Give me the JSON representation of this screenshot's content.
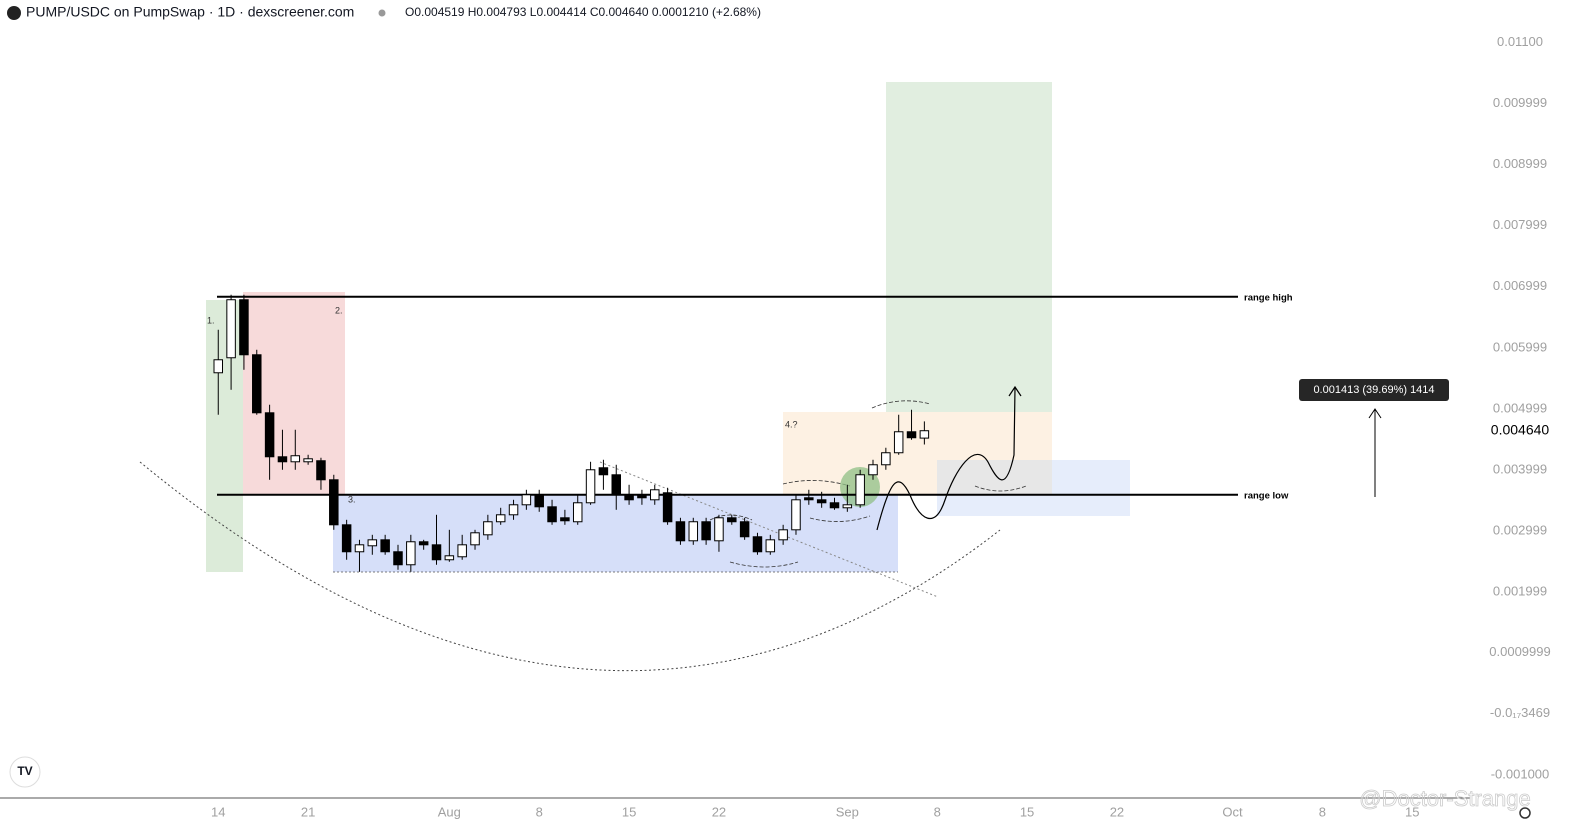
{
  "chart_data": {
    "type": "candlestick",
    "title": "PUMP/USDC on PumpSwap · 1D · dexscreener.com",
    "subtitle": "O0.004519 H0.004793 L0.004414 C0.004640 0.0001210 (+2.68%)",
    "watermark": "@Doctor-Strange",
    "up_color": "#ffffff",
    "down_color": "#000000",
    "ylim": [
      -0.00138,
      0.0117
    ],
    "yticks": [
      {
        "value": 0.011,
        "label": "0.01100"
      },
      0.009999,
      0.008999,
      0.007999,
      0.006999,
      0.005999,
      0.004999,
      0.003999,
      0.002999,
      0.001999,
      0.0009999,
      {
        "value": -3.469e-18,
        "label": "-0.0₁₇3469"
      },
      {
        "value": -0.001,
        "label": "-0.001000"
      }
    ],
    "xlim": [
      -17,
      97.5
    ],
    "xticks": [
      {
        "value": 0,
        "label": "14"
      },
      {
        "value": 7,
        "label": "21"
      },
      {
        "value": 18,
        "label": "Aug"
      },
      {
        "value": 25,
        "label": "8"
      },
      {
        "value": 32,
        "label": "15"
      },
      {
        "value": 39,
        "label": "22"
      },
      {
        "value": 49,
        "label": "Sep"
      },
      {
        "value": 56,
        "label": "8"
      },
      {
        "value": 63,
        "label": "15"
      },
      {
        "value": 70,
        "label": "22"
      },
      {
        "value": 79,
        "label": "Oct"
      },
      {
        "value": 86,
        "label": "8"
      },
      {
        "value": 93,
        "label": "15"
      }
    ],
    "x": [
      0,
      1,
      2,
      3,
      4,
      5,
      6,
      7,
      8,
      9,
      10,
      11,
      12,
      13,
      14,
      15,
      16,
      17,
      18,
      19,
      20,
      21,
      22,
      23,
      24,
      25,
      26,
      27,
      28,
      29,
      30,
      31,
      32,
      33,
      34,
      35,
      36,
      37,
      38,
      39,
      40,
      41,
      42,
      43,
      44,
      45,
      46,
      47,
      48,
      49,
      50,
      51,
      52,
      53,
      54,
      55
    ],
    "open": [
      0.00559,
      0.005836,
      0.006787,
      0.005885,
      0.004934,
      0.004213,
      0.004131,
      0.004131,
      0.004148,
      0.003836,
      0.003098,
      0.002656,
      0.002754,
      0.002852,
      0.002656,
      0.002443,
      0.00282,
      0.00277,
      0.002525,
      0.002574,
      0.00277,
      0.002934,
      0.003148,
      0.003262,
      0.003426,
      0.00359,
      0.003393,
      0.003213,
      0.003148,
      0.003459,
      0.004033,
      0.003918,
      0.00359,
      0.00359,
      0.003508,
      0.003623,
      0.003148,
      0.002836,
      0.003148,
      0.002836,
      0.003213,
      0.003148,
      0.002902,
      0.002656,
      0.002852,
      0.003016,
      0.003541,
      0.003508,
      0.003459,
      0.003377,
      0.003426,
      0.003918,
      0.004082,
      0.004279,
      0.004623,
      0.004519
    ],
    "high": [
      0.006295,
      0.006869,
      0.006869,
      0.005967,
      0.005066,
      0.004656,
      0.004656,
      0.004246,
      0.004197,
      0.003918,
      0.00318,
      0.002852,
      0.002934,
      0.002934,
      0.00277,
      0.002934,
      0.002852,
      0.003262,
      0.003016,
      0.002934,
      0.003016,
      0.003262,
      0.003377,
      0.003508,
      0.003672,
      0.003672,
      0.003508,
      0.003344,
      0.00359,
      0.004131,
      0.004164,
      0.004082,
      0.003754,
      0.003672,
      0.003754,
      0.003705,
      0.003213,
      0.003213,
      0.003213,
      0.003262,
      0.003262,
      0.003213,
      0.002967,
      0.002934,
      0.003098,
      0.00359,
      0.003672,
      0.003639,
      0.003541,
      0.003754,
      0.004,
      0.004164,
      0.004361,
      0.004902,
      0.004984,
      0.004793
    ],
    "low": [
      0.004902,
      0.005311,
      0.005639,
      0.004902,
      0.003836,
      0.004,
      0.004,
      0.004082,
      0.003672,
      0.003016,
      0.002525,
      0.002328,
      0.002607,
      0.002607,
      0.002361,
      0.002328,
      0.002689,
      0.002443,
      0.002492,
      0.002525,
      0.002689,
      0.002852,
      0.003098,
      0.00318,
      0.003344,
      0.003311,
      0.003098,
      0.003098,
      0.003098,
      0.003426,
      0.003672,
      0.003344,
      0.003426,
      0.003426,
      0.003426,
      0.003098,
      0.00277,
      0.00277,
      0.00277,
      0.002656,
      0.003098,
      0.002852,
      0.002607,
      0.002607,
      0.00277,
      0.002934,
      0.003426,
      0.003377,
      0.003344,
      0.003311,
      0.003377,
      0.003836,
      0.004,
      0.004246,
      0.004492,
      0.004414
    ],
    "close": [
      0.005803,
      0.006787,
      0.005885,
      0.004934,
      0.004213,
      0.004131,
      0.00423,
      0.00418,
      0.003836,
      0.003098,
      0.002656,
      0.00277,
      0.002852,
      0.002656,
      0.002443,
      0.00282,
      0.00277,
      0.002525,
      0.00259,
      0.00277,
      0.002967,
      0.003148,
      0.003262,
      0.003426,
      0.00359,
      0.003393,
      0.003148,
      0.003164,
      0.003459,
      0.004,
      0.003918,
      0.00359,
      0.003508,
      0.003541,
      0.003672,
      0.003148,
      0.002836,
      0.003148,
      0.002852,
      0.003213,
      0.003148,
      0.002902,
      0.002656,
      0.002852,
      0.003016,
      0.003508,
      0.003508,
      0.003459,
      0.003377,
      0.003426,
      0.003918,
      0.004082,
      0.004279,
      0.004623,
      0.004525,
      0.00464
    ],
    "levels": [
      {
        "label": "range high",
        "value": 0.006836
      },
      {
        "label": "range low",
        "value": 0.00359
      }
    ],
    "price_tag": {
      "value": 0.00464,
      "label": "0.004640"
    },
    "measure_label": "0.001413 (39.69%) 1414",
    "annotations": [
      "1.",
      "2.",
      "3.",
      "4.?"
    ]
  }
}
